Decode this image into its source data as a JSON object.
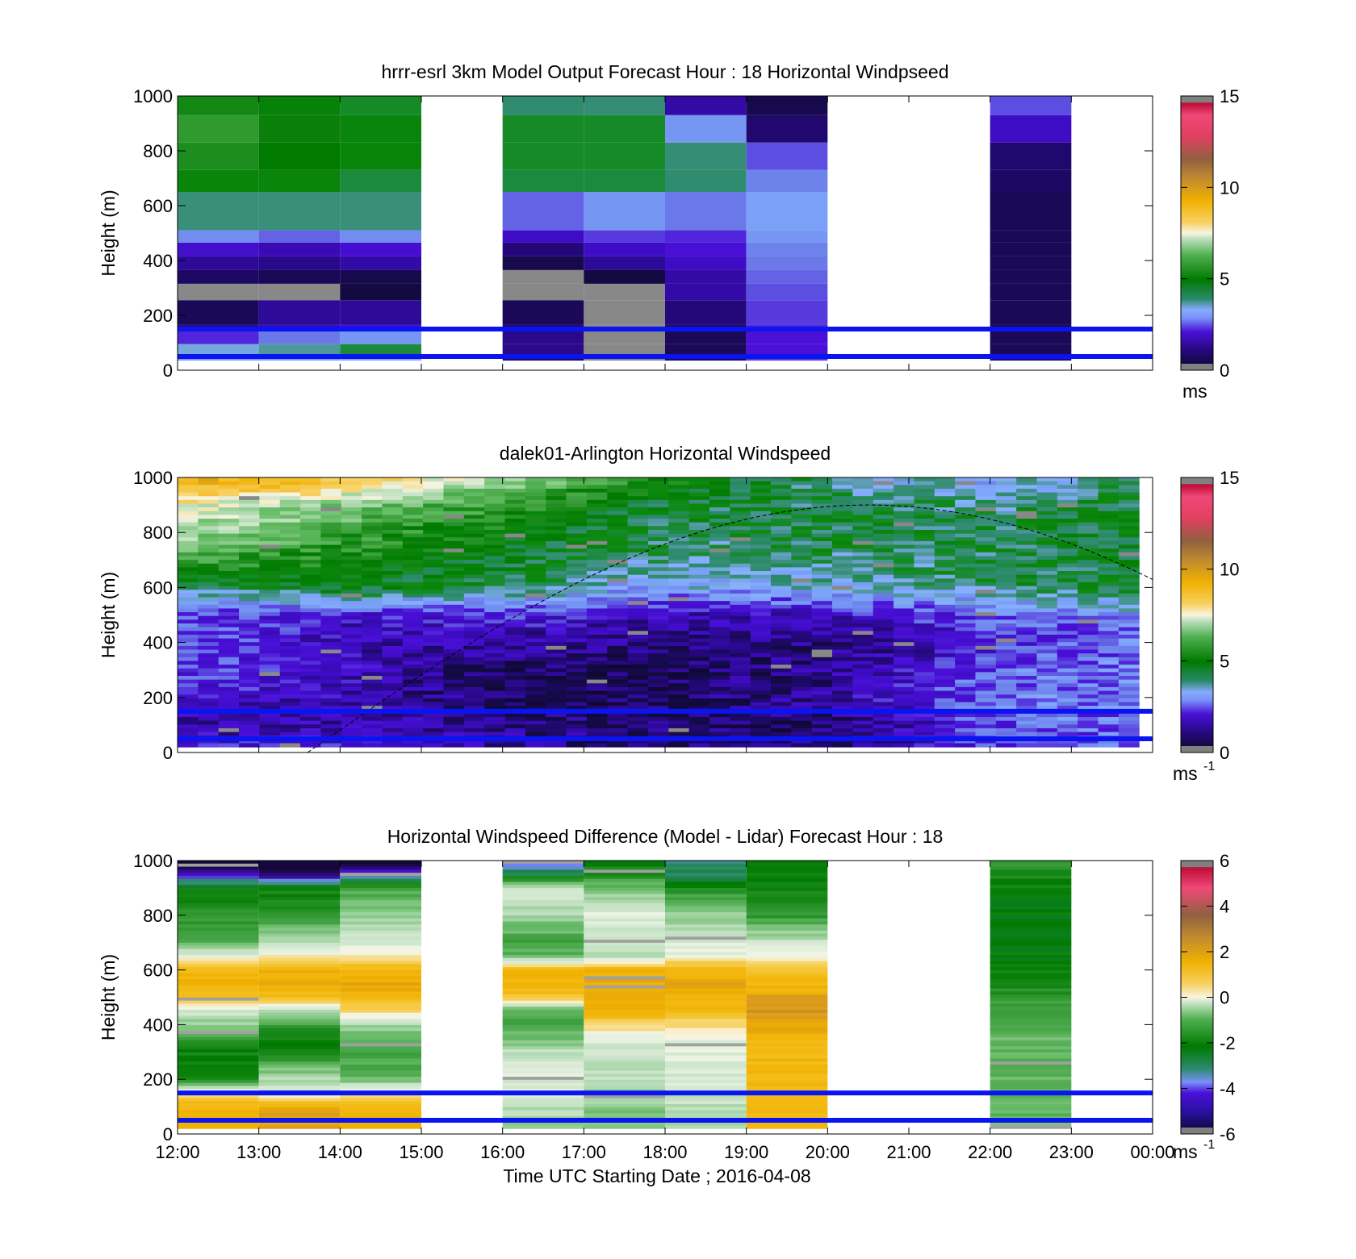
{
  "chart_data": [
    {
      "type": "heatmap",
      "title": "hrrr-esrl 3km Model Output   Forecast Hour : 18 Horizontal Windpseed",
      "xlabel": "",
      "ylabel": "Height (m)",
      "xlim": [
        "12:00",
        "00:00"
      ],
      "ylim": [
        0,
        1000
      ],
      "y_ticks": [
        "0",
        "200",
        "400",
        "600",
        "800",
        "1000"
      ],
      "colorbar": {
        "min": 0,
        "max": 15,
        "ticks": [
          "0",
          "5",
          "10",
          "15"
        ],
        "unit": "ms",
        "unit_sup": ""
      },
      "reference_lines_m": [
        50,
        150
      ],
      "hours_with_data": [
        "12:00",
        "13:00",
        "14:00",
        "16:00",
        "17:00",
        "18:00",
        "19:00",
        "22:00"
      ],
      "value_matrix": {
        "heights_m": [
          975,
          875,
          775,
          675,
          575,
          475,
          425,
          375,
          325,
          275,
          225,
          175,
          125,
          75,
          35
        ],
        "hour_columns": [
          {
            "hour": "12:00",
            "values": [
              5.2,
              5.5,
              5.3,
              4.6,
              3.7,
              2.8,
              1.8,
              1.3,
              0.9,
              0.2,
              0.8,
              1.2,
              2.2,
              3.4,
              3.0
            ]
          },
          {
            "hour": "13:00",
            "values": [
              4.7,
              5.1,
              5.0,
              4.6,
              3.7,
              2.5,
              1.5,
              1.2,
              0.8,
              0.2,
              1.3,
              1.5,
              2.6,
              3.6,
              3.0
            ]
          },
          {
            "hour": "14:00",
            "values": [
              4.3,
              4.6,
              4.6,
              4.2,
              3.7,
              2.8,
              1.9,
              1.4,
              0.7,
              0.6,
              1.3,
              1.8,
              2.9,
              4.2,
              3.2
            ]
          },
          {
            "hour": "16:00",
            "values": [
              3.9,
              4.3,
              4.3,
              4.2,
              2.5,
              1.6,
              1.1,
              0.7,
              0.2,
              0.2,
              0.8,
              1.0,
              1.2,
              1.2,
              0.8
            ]
          },
          {
            "hour": "17:00",
            "values": [
              3.8,
              4.3,
              4.3,
              4.2,
              2.9,
              2.3,
              1.6,
              1.3,
              0.6,
              0.2,
              0.2,
              0.2,
              0.2,
              0.2,
              0.2
            ]
          },
          {
            "hour": "18:00",
            "values": [
              1.4,
              2.9,
              3.8,
              3.9,
              2.6,
              2.2,
              2.0,
              1.6,
              1.4,
              1.4,
              1.1,
              0.9,
              0.8,
              0.8,
              0.8
            ]
          },
          {
            "hour": "19:00",
            "values": [
              0.7,
              1.0,
              2.4,
              2.7,
              3.0,
              2.9,
              2.7,
              2.6,
              2.5,
              2.4,
              2.3,
              2.2,
              2.1,
              2.1,
              2.3
            ]
          },
          {
            "hour": "22:00",
            "values": [
              2.4,
              1.6,
              1.0,
              0.9,
              0.8,
              0.8,
              0.8,
              0.8,
              0.8,
              0.8,
              0.8,
              0.8,
              0.8,
              0.8,
              1.0
            ]
          }
        ]
      }
    },
    {
      "type": "heatmap",
      "title": "dalek01-Arlington  Horizontal Windspeed",
      "xlabel": "",
      "ylabel": "Height (m)",
      "xlim": [
        "12:00",
        "00:00"
      ],
      "ylim": [
        0,
        1000
      ],
      "y_ticks": [
        "0",
        "200",
        "400",
        "600",
        "800",
        "1000"
      ],
      "colorbar": {
        "min": 0,
        "max": 15,
        "ticks": [
          "0",
          "5",
          "10",
          "15"
        ],
        "unit": "ms",
        "unit_sup": "-1"
      },
      "reference_lines_m": [
        50,
        150
      ],
      "overlay_curve_peak_m": 900,
      "overlay_curve_peak_time": "20:30",
      "data_end_time": "23:50",
      "profile_summary": {
        "heights_m": [
          980,
          900,
          800,
          700,
          600,
          500,
          400,
          300,
          200,
          100,
          30
        ],
        "time_keys": [
          "12:00",
          "14:00",
          "16:00",
          "18:00",
          "20:00",
          "22:00",
          "23:50"
        ],
        "values": [
          [
            9.5,
            8.5,
            6.5,
            5.0,
            3.8,
            3.0,
            4.0
          ],
          [
            7.5,
            6.5,
            5.5,
            4.2,
            4.0,
            3.8,
            4.2
          ],
          [
            6.8,
            5.8,
            4.8,
            4.0,
            4.2,
            4.1,
            4.3
          ],
          [
            5.8,
            5.2,
            4.4,
            3.7,
            3.8,
            4.0,
            4.3
          ],
          [
            3.6,
            4.6,
            4.0,
            3.0,
            3.4,
            3.9,
            4.2
          ],
          [
            2.4,
            1.8,
            2.2,
            1.6,
            1.8,
            2.4,
            3.0
          ],
          [
            2.6,
            1.6,
            1.4,
            1.1,
            1.0,
            2.0,
            2.6
          ],
          [
            2.4,
            1.8,
            0.8,
            0.8,
            1.2,
            2.4,
            2.8
          ],
          [
            2.0,
            1.6,
            0.8,
            0.8,
            1.4,
            2.6,
            2.8
          ],
          [
            1.4,
            1.6,
            1.2,
            0.9,
            0.9,
            2.4,
            2.6
          ],
          [
            1.8,
            2.0,
            1.2,
            1.0,
            1.0,
            2.2,
            2.4
          ]
        ]
      }
    },
    {
      "type": "heatmap",
      "title": "Horizontal Windspeed Difference (Model - Lidar) Forecast Hour : 18",
      "xlabel": "Time UTC  Starting Date ; 2016-04-08",
      "ylabel": "Height (m)",
      "x_ticks": [
        "12:00",
        "13:00",
        "14:00",
        "15:00",
        "16:00",
        "17:00",
        "18:00",
        "19:00",
        "20:00",
        "21:00",
        "22:00",
        "23:00",
        "00:00"
      ],
      "ylim": [
        0,
        1000
      ],
      "y_ticks": [
        "0",
        "200",
        "400",
        "600",
        "800",
        "1000"
      ],
      "colorbar": {
        "min": -6,
        "max": 6,
        "ticks": [
          "-6",
          "-4",
          "-2",
          "0",
          "2",
          "4",
          "6"
        ],
        "unit": "ms",
        "unit_sup": "-1"
      },
      "reference_lines_m": [
        50,
        150
      ],
      "hours_with_data": [
        "12:00",
        "13:00",
        "14:00",
        "16:00",
        "17:00",
        "18:00",
        "19:00",
        "22:00"
      ],
      "profile_summary": {
        "heights_m": [
          990,
          950,
          900,
          800,
          700,
          650,
          600,
          550,
          500,
          450,
          400,
          350,
          300,
          250,
          200,
          150,
          100,
          60,
          20
        ],
        "hour_columns": [
          {
            "hour": "12:00",
            "values": [
              -5.5,
              -4.5,
              -2.8,
              -2.3,
              -1.8,
              -0.3,
              1.2,
              1.4,
              1.0,
              -0.5,
              -1.2,
              -2.0,
              -2.6,
              -2.7,
              -2.5,
              0.4,
              1.4,
              1.4,
              1.7
            ]
          },
          {
            "hour": "13:00",
            "values": [
              -5.8,
              -5.2,
              -2.6,
              -2.2,
              -0.8,
              0.0,
              1.4,
              1.6,
              1.2,
              -0.7,
              -2.0,
              -2.6,
              -2.7,
              -1.6,
              -1.0,
              -0.4,
              1.5,
              1.8,
              1.8
            ]
          },
          {
            "hour": "14:00",
            "values": [
              -5.7,
              -4.0,
              -2.0,
              -1.2,
              -0.6,
              0.2,
              1.4,
              1.6,
              1.4,
              0.4,
              -1.0,
              -1.6,
              -2.0,
              -1.8,
              -1.6,
              0.4,
              1.2,
              1.4,
              1.4
            ]
          },
          {
            "hour": "16:00",
            "values": [
              -4.2,
              -3.2,
              -0.6,
              -1.0,
              -2.0,
              -1.6,
              1.2,
              1.4,
              0.8,
              -1.6,
              -2.0,
              -1.4,
              -0.8,
              -0.6,
              -0.4,
              -0.6,
              -0.8,
              -1.0,
              -1.2
            ]
          },
          {
            "hour": "17:00",
            "values": [
              -2.8,
              -2.4,
              -1.4,
              -0.4,
              -0.6,
              -1.0,
              1.4,
              1.6,
              1.6,
              1.4,
              0.6,
              -0.4,
              -0.6,
              -0.8,
              -0.8,
              -1.0,
              -1.2,
              -1.4,
              -1.2
            ]
          },
          {
            "hour": "18:00",
            "values": [
              -3.6,
              -3.4,
              -2.4,
              -1.2,
              -0.4,
              -0.2,
              1.4,
              1.6,
              1.4,
              1.2,
              0.4,
              -0.2,
              -0.4,
              -0.4,
              -0.6,
              -0.6,
              -0.8,
              -0.9,
              -0.8
            ]
          },
          {
            "hour": "19:00",
            "values": [
              -2.8,
              -2.8,
              -2.6,
              -2.2,
              -0.6,
              0.0,
              0.8,
              1.2,
              1.8,
              2.0,
              1.8,
              1.2,
              1.2,
              1.2,
              1.2,
              1.3,
              1.3,
              1.3,
              1.3
            ]
          },
          {
            "hour": "22:00",
            "values": [
              -2.0,
              -2.5,
              -2.7,
              -2.8,
              -2.8,
              -2.8,
              -2.8,
              -2.6,
              -2.2,
              -2.0,
              -1.8,
              -1.6,
              -1.6,
              -1.6,
              -1.6,
              -1.6,
              -1.6,
              -1.6,
              -1.6
            ]
          }
        ]
      }
    }
  ]
}
